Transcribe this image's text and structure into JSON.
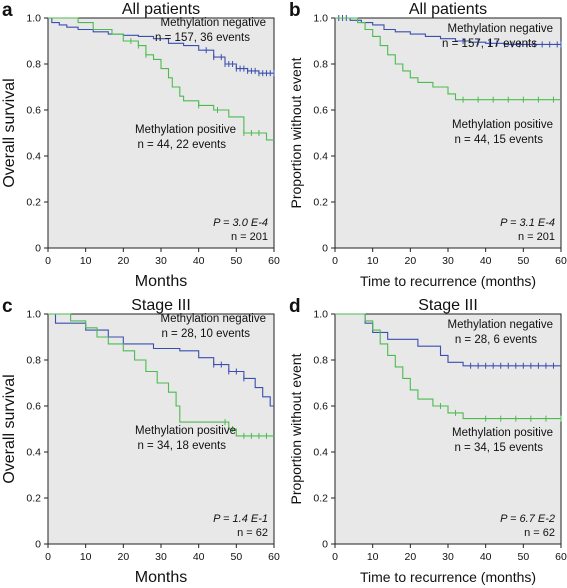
{
  "figure": {
    "colors": {
      "negative": "#3a4fb0",
      "positive": "#4cbb4f",
      "plot_bg": "#e8e8e8",
      "axis": "#222222",
      "text": "#111111"
    }
  },
  "chart_data": [
    {
      "panel": "a",
      "type": "line",
      "title": "All patients",
      "xlabel": "Months",
      "ylabel": "Overall survival",
      "xlim": [
        0,
        60
      ],
      "ylim": [
        0,
        1.0
      ],
      "xticks": [
        "0",
        "10",
        "20",
        "30",
        "40",
        "50",
        "60"
      ],
      "yticks": [
        "0",
        "0.2",
        "0.4",
        "0.6",
        "0.8",
        "1.0"
      ],
      "annotations": {
        "negative_name": "Methylation negative",
        "negative_n": "n = 157, 36 events",
        "positive_name": "Methylation positive",
        "positive_n": "n = 44, 22 events",
        "p_value": "P = 3.0 E-4",
        "total_n": "n = 201"
      },
      "series": [
        {
          "name": "Methylation negative",
          "color": "#3a4fb0",
          "steps": [
            [
              0,
              1.0
            ],
            [
              1,
              0.98
            ],
            [
              3,
              0.97
            ],
            [
              5,
              0.96
            ],
            [
              8,
              0.95
            ],
            [
              12,
              0.94
            ],
            [
              16,
              0.93
            ],
            [
              20,
              0.925
            ],
            [
              24,
              0.92
            ],
            [
              28,
              0.91
            ],
            [
              32,
              0.89
            ],
            [
              36,
              0.88
            ],
            [
              40,
              0.86
            ],
            [
              44,
              0.83
            ],
            [
              47,
              0.8
            ],
            [
              50,
              0.78
            ],
            [
              53,
              0.77
            ],
            [
              56,
              0.76
            ],
            [
              60,
              0.76
            ]
          ],
          "censor_x": [
            42,
            44,
            46,
            47,
            48,
            49,
            50,
            51,
            52,
            53,
            54,
            55,
            56,
            57,
            58,
            59,
            60
          ]
        },
        {
          "name": "Methylation positive",
          "color": "#4cbb4f",
          "steps": [
            [
              0,
              1.0
            ],
            [
              8,
              0.98
            ],
            [
              12,
              0.95
            ],
            [
              17,
              0.93
            ],
            [
              20,
              0.9
            ],
            [
              24,
              0.88
            ],
            [
              26,
              0.84
            ],
            [
              28,
              0.82
            ],
            [
              30,
              0.78
            ],
            [
              32,
              0.74
            ],
            [
              33,
              0.7
            ],
            [
              35,
              0.66
            ],
            [
              36,
              0.64
            ],
            [
              40,
              0.62
            ],
            [
              44,
              0.6
            ],
            [
              48,
              0.57
            ],
            [
              52,
              0.5
            ],
            [
              58,
              0.47
            ],
            [
              60,
              0.47
            ]
          ],
          "censor_x": [
            22,
            24,
            26,
            40,
            45,
            52,
            54,
            56
          ]
        }
      ]
    },
    {
      "panel": "b",
      "type": "line",
      "title": "All patients",
      "xlabel": "Time to recurrence (months)",
      "ylabel": "Proportion without event",
      "xlim": [
        0,
        60
      ],
      "ylim": [
        0,
        1.0
      ],
      "xticks": [
        "0",
        "10",
        "20",
        "30",
        "40",
        "50",
        "60"
      ],
      "yticks": [
        "0",
        "0.2",
        "0.4",
        "0.6",
        "0.8",
        "1.0"
      ],
      "annotations": {
        "negative_name": "Methylation negative",
        "negative_n": "n = 157, 17 events",
        "positive_name": "Methylation positive",
        "positive_n": "n = 44, 15 events",
        "p_value": "P = 3.1 E-4",
        "total_n": "n = 201"
      },
      "series": [
        {
          "name": "Methylation negative",
          "color": "#3a4fb0",
          "steps": [
            [
              0,
              1.0
            ],
            [
              4,
              0.99
            ],
            [
              7,
              0.98
            ],
            [
              10,
              0.97
            ],
            [
              13,
              0.95
            ],
            [
              16,
              0.94
            ],
            [
              20,
              0.93
            ],
            [
              24,
              0.92
            ],
            [
              28,
              0.91
            ],
            [
              32,
              0.9
            ],
            [
              36,
              0.895
            ],
            [
              40,
              0.89
            ],
            [
              45,
              0.885
            ],
            [
              60,
              0.885
            ]
          ],
          "censor_x": [
            1,
            2,
            3,
            34,
            38,
            41,
            43,
            45,
            47,
            49,
            51,
            53,
            55,
            57,
            59,
            60
          ]
        },
        {
          "name": "Methylation positive",
          "color": "#4cbb4f",
          "steps": [
            [
              0,
              1.0
            ],
            [
              6,
              0.98
            ],
            [
              8,
              0.95
            ],
            [
              10,
              0.92
            ],
            [
              12,
              0.88
            ],
            [
              14,
              0.84
            ],
            [
              16,
              0.8
            ],
            [
              18,
              0.77
            ],
            [
              20,
              0.74
            ],
            [
              22,
              0.72
            ],
            [
              26,
              0.7
            ],
            [
              30,
              0.67
            ],
            [
              32,
              0.645
            ],
            [
              60,
              0.645
            ]
          ],
          "censor_x": [
            34,
            38,
            42,
            46,
            50,
            54,
            58
          ]
        }
      ]
    },
    {
      "panel": "c",
      "type": "line",
      "title": "Stage III",
      "xlabel": "Months",
      "ylabel": "Overall survival",
      "xlim": [
        0,
        60
      ],
      "ylim": [
        0,
        1.0
      ],
      "xticks": [
        "0",
        "10",
        "20",
        "30",
        "40",
        "50",
        "60"
      ],
      "yticks": [
        "0",
        "0.2",
        "0.4",
        "0.6",
        "0.8",
        "1.0"
      ],
      "annotations": {
        "negative_name": "Methylation negative",
        "negative_n": "n = 28, 10 events",
        "positive_name": "Methylation positive",
        "positive_n": "n = 34, 18 events",
        "p_value": "P = 1.4 E-1",
        "total_n": "n = 62"
      },
      "series": [
        {
          "name": "Methylation negative",
          "color": "#3a4fb0",
          "steps": [
            [
              0,
              1.0
            ],
            [
              2,
              0.96
            ],
            [
              10,
              0.93
            ],
            [
              16,
              0.9
            ],
            [
              20,
              0.87
            ],
            [
              28,
              0.85
            ],
            [
              35,
              0.84
            ],
            [
              40,
              0.81
            ],
            [
              44,
              0.78
            ],
            [
              48,
              0.75
            ],
            [
              52,
              0.72
            ],
            [
              55,
              0.68
            ],
            [
              57,
              0.64
            ],
            [
              59,
              0.6
            ],
            [
              60,
              0.6
            ]
          ],
          "censor_x": [
            44,
            46,
            48,
            50,
            52
          ]
        },
        {
          "name": "Methylation positive",
          "color": "#4cbb4f",
          "steps": [
            [
              0,
              1.0
            ],
            [
              6,
              0.97
            ],
            [
              10,
              0.94
            ],
            [
              13,
              0.9
            ],
            [
              16,
              0.87
            ],
            [
              20,
              0.84
            ],
            [
              23,
              0.8
            ],
            [
              26,
              0.75
            ],
            [
              29,
              0.7
            ],
            [
              32,
              0.66
            ],
            [
              34,
              0.6
            ],
            [
              35,
              0.53
            ],
            [
              48,
              0.5
            ],
            [
              50,
              0.47
            ],
            [
              60,
              0.47
            ]
          ],
          "censor_x": [
            47,
            49,
            52,
            54,
            56,
            58
          ]
        }
      ]
    },
    {
      "panel": "d",
      "type": "line",
      "title": "Stage III",
      "xlabel": "Time to recurrence (months)",
      "ylabel": "Proportion without event",
      "xlim": [
        0,
        60
      ],
      "ylim": [
        0,
        1.0
      ],
      "xticks": [
        "0",
        "10",
        "20",
        "30",
        "40",
        "50",
        "60"
      ],
      "yticks": [
        "0",
        "0.2",
        "0.4",
        "0.6",
        "0.8",
        "1.0"
      ],
      "annotations": {
        "negative_name": "Methylation negative",
        "negative_n": "n = 28, 6 events",
        "positive_name": "Methylation positive",
        "positive_n": "n = 34, 15 events",
        "p_value": "P = 6.7 E-2",
        "total_n": "n = 62"
      },
      "series": [
        {
          "name": "Methylation negative",
          "color": "#3a4fb0",
          "steps": [
            [
              0,
              1.0
            ],
            [
              8,
              0.96
            ],
            [
              10,
              0.92
            ],
            [
              14,
              0.89
            ],
            [
              22,
              0.86
            ],
            [
              28,
              0.82
            ],
            [
              30,
              0.79
            ],
            [
              34,
              0.775
            ],
            [
              60,
              0.775
            ]
          ],
          "censor_x": [
            36,
            38,
            40,
            42,
            44,
            46,
            48,
            50,
            52,
            54,
            56,
            58
          ]
        },
        {
          "name": "Methylation positive",
          "color": "#4cbb4f",
          "steps": [
            [
              0,
              1.0
            ],
            [
              8,
              0.97
            ],
            [
              10,
              0.93
            ],
            [
              12,
              0.87
            ],
            [
              14,
              0.82
            ],
            [
              16,
              0.77
            ],
            [
              18,
              0.72
            ],
            [
              20,
              0.67
            ],
            [
              22,
              0.63
            ],
            [
              26,
              0.6
            ],
            [
              30,
              0.57
            ],
            [
              34,
              0.545
            ],
            [
              60,
              0.545
            ]
          ],
          "censor_x": [
            28,
            32,
            40,
            44,
            48,
            52,
            56,
            60
          ]
        }
      ]
    }
  ]
}
